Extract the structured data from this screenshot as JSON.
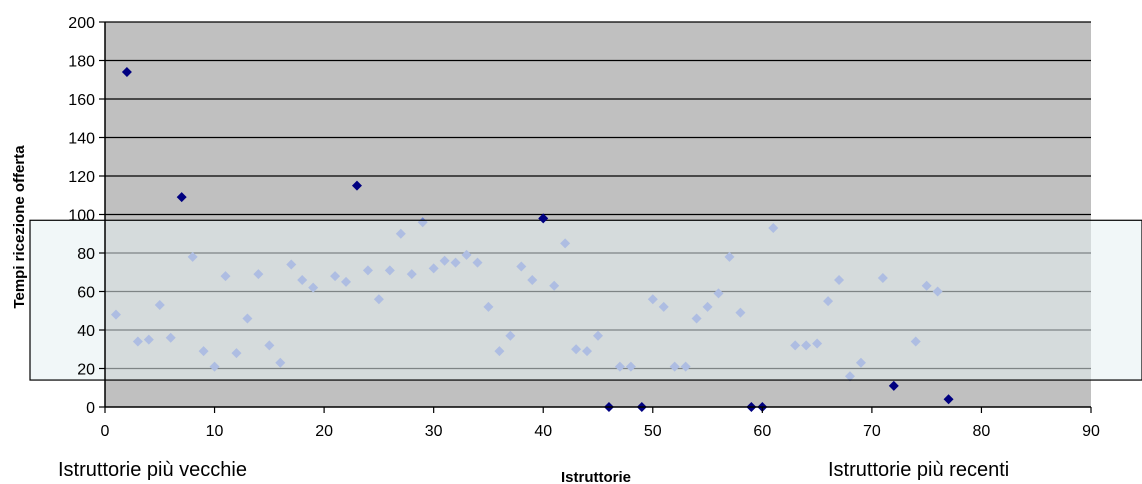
{
  "chart_data": {
    "type": "scatter",
    "ylabel": "Tempi ricezione offerta",
    "xlabel": "Istruttorie",
    "annotations": {
      "left": "Istruttorie più vecchie",
      "right": "Istruttorie più recenti"
    },
    "xlim": [
      0,
      90
    ],
    "ylim": [
      0,
      200
    ],
    "x_ticks": [
      "0",
      "10",
      "20",
      "30",
      "40",
      "50",
      "60",
      "70",
      "80",
      "90"
    ],
    "y_ticks": [
      "0",
      "20",
      "40",
      "60",
      "80",
      "100",
      "120",
      "140",
      "160",
      "180",
      "200"
    ],
    "grid": true,
    "highlight_band": {
      "y_from": 14,
      "y_to": 97,
      "color": "#e6f0f2"
    },
    "plot_background": "#c0c0c0",
    "colors": {
      "inside_band": "#6a7fcf",
      "outside_band": "#000080"
    },
    "points": [
      [
        1,
        48
      ],
      [
        2,
        174
      ],
      [
        3,
        34
      ],
      [
        4,
        35
      ],
      [
        5,
        53
      ],
      [
        6,
        36
      ],
      [
        7,
        109
      ],
      [
        8,
        78
      ],
      [
        9,
        29
      ],
      [
        10,
        21
      ],
      [
        11,
        68
      ],
      [
        12,
        28
      ],
      [
        13,
        46
      ],
      [
        14,
        69
      ],
      [
        15,
        32
      ],
      [
        16,
        23
      ],
      [
        17,
        74
      ],
      [
        18,
        66
      ],
      [
        19,
        62
      ],
      [
        21,
        68
      ],
      [
        22,
        65
      ],
      [
        23,
        115
      ],
      [
        24,
        71
      ],
      [
        25,
        56
      ],
      [
        26,
        71
      ],
      [
        27,
        90
      ],
      [
        28,
        69
      ],
      [
        29,
        96
      ],
      [
        30,
        72
      ],
      [
        31,
        76
      ],
      [
        32,
        75
      ],
      [
        33,
        79
      ],
      [
        34,
        75
      ],
      [
        35,
        52
      ],
      [
        36,
        29
      ],
      [
        37,
        37
      ],
      [
        38,
        73
      ],
      [
        39,
        66
      ],
      [
        40,
        98
      ],
      [
        41,
        63
      ],
      [
        42,
        85
      ],
      [
        43,
        30
      ],
      [
        44,
        29
      ],
      [
        45,
        37
      ],
      [
        46,
        0
      ],
      [
        47,
        21
      ],
      [
        48,
        21
      ],
      [
        49,
        0
      ],
      [
        50,
        56
      ],
      [
        51,
        52
      ],
      [
        52,
        21
      ],
      [
        53,
        21
      ],
      [
        54,
        46
      ],
      [
        55,
        52
      ],
      [
        56,
        59
      ],
      [
        57,
        78
      ],
      [
        58,
        49
      ],
      [
        59,
        0
      ],
      [
        60,
        0
      ],
      [
        61,
        93
      ],
      [
        63,
        32
      ],
      [
        64,
        32
      ],
      [
        65,
        33
      ],
      [
        66,
        55
      ],
      [
        67,
        66
      ],
      [
        68,
        16
      ],
      [
        69,
        23
      ],
      [
        71,
        67
      ],
      [
        72,
        11
      ],
      [
        74,
        34
      ],
      [
        75,
        63
      ],
      [
        76,
        60
      ],
      [
        77,
        4
      ]
    ]
  }
}
